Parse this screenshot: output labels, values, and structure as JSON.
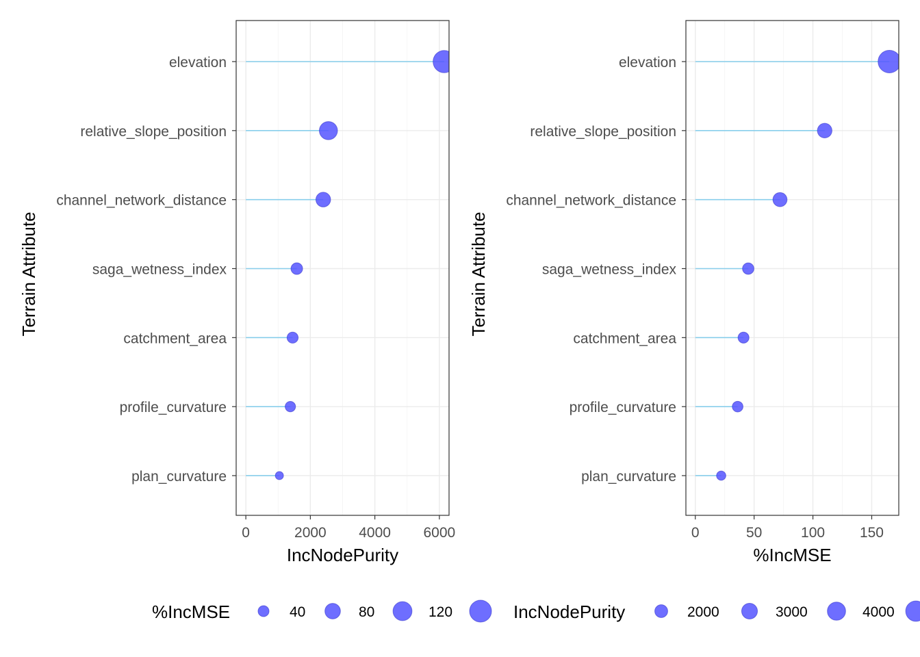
{
  "chart_data": [
    {
      "type": "scatter",
      "subtype": "lollipop",
      "xlabel": "IncNodePurity",
      "ylabel": "Terrain Attribute",
      "xlim": [
        -300,
        6300
      ],
      "xticks": [
        0,
        2000,
        4000,
        6000
      ],
      "xtick_labels": [
        "0",
        "2000",
        "4000",
        "6000"
      ],
      "categories": [
        "elevation",
        "relative_slope_position",
        "channel_network_distance",
        "saga_wetness_index",
        "catchment_area",
        "profile_curvature",
        "plan_curvature"
      ],
      "values": [
        6150,
        2560,
        2400,
        1580,
        1450,
        1380,
        1040
      ],
      "size_values": [
        165,
        110,
        72,
        45,
        41,
        36,
        22
      ],
      "size_variable": "%IncMSE"
    },
    {
      "type": "scatter",
      "subtype": "lollipop",
      "xlabel": "%IncMSE",
      "ylabel": "Terrain Attribute",
      "xlim": [
        -8,
        173
      ],
      "xticks": [
        0,
        50,
        100,
        150
      ],
      "xtick_labels": [
        "0",
        "50",
        "100",
        "150"
      ],
      "categories": [
        "elevation",
        "relative_slope_position",
        "channel_network_distance",
        "saga_wetness_index",
        "catchment_area",
        "profile_curvature",
        "plan_curvature"
      ],
      "values": [
        165,
        110,
        72,
        45,
        41,
        36,
        22
      ],
      "size_values": [
        6150,
        2560,
        2400,
        1580,
        1450,
        1380,
        1040
      ],
      "size_variable": "IncNodePurity"
    }
  ],
  "legend": {
    "position": "bottom",
    "incmse": {
      "title": "%IncMSE",
      "values": [
        40,
        80,
        120,
        160
      ],
      "labels": [
        "40",
        "80",
        "120",
        ""
      ]
    },
    "incnodepurity": {
      "title": "IncNodePurity",
      "values": [
        2000,
        3000,
        4000,
        5000
      ],
      "labels": [
        "2000",
        "3000",
        "4000",
        ""
      ]
    }
  },
  "style": {
    "point_color": "#5555ff",
    "segment_color": "#87ceeb",
    "grid_color": "#ebebeb",
    "axis_text_color": "#4d4d4d"
  }
}
